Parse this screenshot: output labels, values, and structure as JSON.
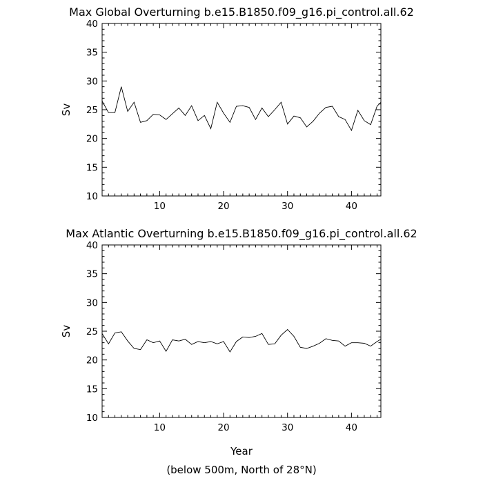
{
  "chart_data": [
    {
      "type": "line",
      "title": "Max Global Overturning b.e15.B1850.f09_g16.pi_control.all.62",
      "xlabel": "",
      "ylabel": "Sv",
      "xlim": [
        1,
        44.6
      ],
      "ylim": [
        10,
        40
      ],
      "xticks": [
        10,
        20,
        30,
        40
      ],
      "yticks": [
        10,
        15,
        20,
        25,
        30,
        35,
        40
      ],
      "x": [
        1,
        2,
        3,
        4,
        5,
        6,
        7,
        8,
        9,
        10,
        11,
        12,
        13,
        14,
        15,
        16,
        17,
        18,
        19,
        20,
        21,
        22,
        23,
        24,
        25,
        26,
        27,
        28,
        29,
        30,
        31,
        32,
        33,
        34,
        35,
        36,
        37,
        38,
        39,
        40,
        41,
        42,
        43,
        44,
        44.6
      ],
      "values": [
        26.5,
        24.5,
        24.5,
        29.0,
        24.7,
        26.3,
        22.8,
        23.1,
        24.2,
        24.1,
        23.3,
        24.3,
        25.3,
        24.0,
        25.7,
        23.1,
        24.0,
        21.7,
        26.3,
        24.4,
        22.8,
        25.6,
        25.7,
        25.4,
        23.3,
        25.3,
        23.8,
        25.0,
        26.3,
        22.5,
        23.9,
        23.6,
        22.0,
        23.0,
        24.4,
        25.4,
        25.6,
        23.8,
        23.3,
        21.4,
        24.9,
        23.1,
        22.4,
        25.6,
        26.3
      ]
    },
    {
      "type": "line",
      "title": "Max Atlantic Overturning b.e15.B1850.f09_g16.pi_control.all.62",
      "xlabel": "Year",
      "ylabel": "Sv",
      "xlim": [
        1,
        44.6
      ],
      "ylim": [
        10,
        40
      ],
      "xticks": [
        10,
        20,
        30,
        40
      ],
      "yticks": [
        10,
        15,
        20,
        25,
        30,
        35,
        40
      ],
      "x": [
        1,
        2,
        3,
        4,
        5,
        6,
        7,
        8,
        9,
        10,
        11,
        12,
        13,
        14,
        15,
        16,
        17,
        18,
        19,
        20,
        21,
        22,
        23,
        24,
        25,
        26,
        27,
        28,
        29,
        30,
        31,
        32,
        33,
        34,
        35,
        36,
        37,
        38,
        39,
        40,
        41,
        42,
        43,
        44,
        44.6
      ],
      "values": [
        24.6,
        22.8,
        24.7,
        24.9,
        23.3,
        22.0,
        21.8,
        23.5,
        23.0,
        23.3,
        21.5,
        23.5,
        23.3,
        23.6,
        22.7,
        23.2,
        23.0,
        23.2,
        22.8,
        23.2,
        21.4,
        23.2,
        24.0,
        23.9,
        24.1,
        24.6,
        22.7,
        22.8,
        24.3,
        25.3,
        24.1,
        22.2,
        22.0,
        22.4,
        22.9,
        23.7,
        23.4,
        23.3,
        22.4,
        23.0,
        23.0,
        22.9,
        22.4,
        23.2,
        23.6
      ]
    }
  ],
  "caption": "(below 500m, North of 28°N)"
}
